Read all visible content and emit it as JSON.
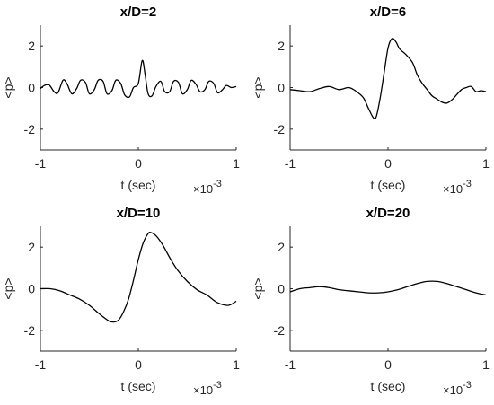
{
  "chart_data": [
    {
      "type": "line",
      "title": "x/D=2",
      "xlabel": "t (sec)",
      "ylabel": "<p>",
      "x_multiplier": "×10",
      "x_multiplier_exp": "-3",
      "xlim": [
        -1,
        1
      ],
      "ylim": [
        -3,
        3
      ],
      "xticks": [
        -1,
        0,
        1
      ],
      "yticks": [
        -2,
        0,
        2
      ],
      "xtick_labels": [
        "-1",
        "0",
        "1"
      ],
      "ytick_labels": [
        "-2",
        "0",
        "2"
      ],
      "x": [
        -1.0,
        -0.96,
        -0.91,
        -0.86,
        -0.82,
        -0.77,
        -0.73,
        -0.68,
        -0.63,
        -0.59,
        -0.54,
        -0.5,
        -0.45,
        -0.41,
        -0.36,
        -0.32,
        -0.27,
        -0.23,
        -0.18,
        -0.14,
        -0.09,
        -0.05,
        0.0,
        0.04,
        0.07,
        0.1,
        0.14,
        0.18,
        0.23,
        0.27,
        0.32,
        0.36,
        0.41,
        0.45,
        0.5,
        0.54,
        0.59,
        0.63,
        0.68,
        0.72,
        0.77,
        0.81,
        0.86,
        0.9,
        0.95,
        1.0
      ],
      "y": [
        -0.05,
        0.1,
        0.12,
        -0.2,
        -0.25,
        0.35,
        0.2,
        -0.3,
        -0.05,
        0.35,
        0.25,
        -0.3,
        -0.1,
        0.35,
        0.3,
        -0.3,
        -0.15,
        0.35,
        0.2,
        -0.35,
        -0.45,
        0.0,
        0.2,
        1.3,
        0.6,
        -0.3,
        -0.4,
        0.05,
        0.3,
        -0.2,
        -0.2,
        0.3,
        0.25,
        -0.3,
        -0.1,
        0.35,
        0.15,
        -0.2,
        -0.1,
        0.3,
        0.2,
        -0.25,
        -0.1,
        0.1,
        0.0,
        0.05
      ]
    },
    {
      "type": "line",
      "title": "x/D=6",
      "xlabel": "t (sec)",
      "ylabel": "<p>",
      "x_multiplier": "×10",
      "x_multiplier_exp": "-3",
      "xlim": [
        -1,
        1
      ],
      "ylim": [
        -3,
        3
      ],
      "xticks": [
        -1,
        0,
        1
      ],
      "yticks": [
        -2,
        0,
        2
      ],
      "xtick_labels": [
        "-1",
        "0",
        "1"
      ],
      "ytick_labels": [
        "-2",
        "0",
        "2"
      ],
      "x": [
        -1.0,
        -0.9,
        -0.8,
        -0.7,
        -0.6,
        -0.5,
        -0.4,
        -0.32,
        -0.25,
        -0.2,
        -0.15,
        -0.12,
        -0.08,
        -0.04,
        0.0,
        0.04,
        0.08,
        0.12,
        0.18,
        0.25,
        0.3,
        0.35,
        0.4,
        0.45,
        0.5,
        0.55,
        0.6,
        0.65,
        0.7,
        0.75,
        0.8,
        0.85,
        0.9,
        0.95,
        1.0
      ],
      "y": [
        -0.1,
        -0.15,
        -0.2,
        -0.05,
        0.05,
        -0.1,
        0.0,
        -0.2,
        -0.5,
        -1.0,
        -1.45,
        -1.4,
        -0.5,
        0.7,
        1.9,
        2.35,
        2.2,
        1.85,
        1.6,
        1.2,
        0.6,
        0.2,
        -0.1,
        -0.4,
        -0.55,
        -0.7,
        -0.75,
        -0.6,
        -0.35,
        -0.1,
        0.0,
        0.05,
        -0.2,
        -0.15,
        -0.2
      ]
    },
    {
      "type": "line",
      "title": "x/D=10",
      "xlabel": "t (sec)",
      "ylabel": "<p>",
      "x_multiplier": "×10",
      "x_multiplier_exp": "-3",
      "xlim": [
        -1,
        1
      ],
      "ylim": [
        -3,
        3
      ],
      "xticks": [
        -1,
        0,
        1
      ],
      "yticks": [
        -2,
        0,
        2
      ],
      "xtick_labels": [
        "-1",
        "0",
        "1"
      ],
      "ytick_labels": [
        "-2",
        "0",
        "2"
      ],
      "x": [
        -1.0,
        -0.9,
        -0.8,
        -0.7,
        -0.6,
        -0.5,
        -0.4,
        -0.3,
        -0.25,
        -0.2,
        -0.15,
        -0.1,
        -0.05,
        0.0,
        0.05,
        0.1,
        0.13,
        0.18,
        0.25,
        0.32,
        0.4,
        0.5,
        0.6,
        0.7,
        0.8,
        0.9,
        0.95,
        1.0
      ],
      "y": [
        0.0,
        0.0,
        -0.1,
        -0.3,
        -0.5,
        -0.8,
        -1.2,
        -1.55,
        -1.6,
        -1.5,
        -1.1,
        -0.5,
        0.4,
        1.4,
        2.2,
        2.65,
        2.7,
        2.55,
        2.1,
        1.5,
        0.9,
        0.35,
        -0.05,
        -0.3,
        -0.65,
        -0.8,
        -0.75,
        -0.6
      ]
    },
    {
      "type": "line",
      "title": "x/D=20",
      "xlabel": "t (sec)",
      "ylabel": "<p>",
      "x_multiplier": "×10",
      "x_multiplier_exp": "-3",
      "xlim": [
        -1,
        1
      ],
      "ylim": [
        -3,
        3
      ],
      "xticks": [
        -1,
        0,
        1
      ],
      "yticks": [
        -2,
        0,
        2
      ],
      "xtick_labels": [
        "-1",
        "0",
        "1"
      ],
      "ytick_labels": [
        "-2",
        "0",
        "2"
      ],
      "x": [
        -1.0,
        -0.9,
        -0.8,
        -0.7,
        -0.6,
        -0.5,
        -0.4,
        -0.3,
        -0.2,
        -0.1,
        0.0,
        0.1,
        0.2,
        0.3,
        0.4,
        0.5,
        0.6,
        0.7,
        0.8,
        0.9,
        1.0
      ],
      "y": [
        -0.15,
        0.0,
        0.05,
        0.1,
        0.05,
        -0.05,
        -0.1,
        -0.15,
        -0.2,
        -0.2,
        -0.15,
        -0.05,
        0.1,
        0.25,
        0.35,
        0.35,
        0.25,
        0.1,
        -0.05,
        -0.2,
        -0.3
      ]
    }
  ]
}
